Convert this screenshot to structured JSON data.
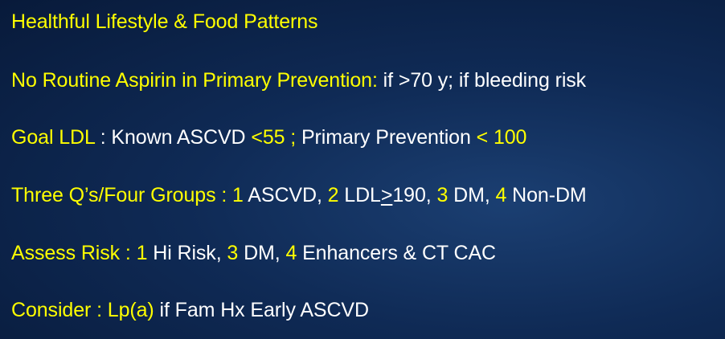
{
  "lines": [
    {
      "segments": [
        {
          "text": "Healthful Lifestyle & Food Patterns",
          "color": "yellow"
        }
      ]
    },
    {
      "segments": [
        {
          "text": "No Routine Aspirin in Primary Prevention:",
          "color": "yellow"
        },
        {
          "text": " if >70 y; if bleeding risk",
          "color": "white"
        }
      ]
    },
    {
      "segments": [
        {
          "text": "Goal LDL",
          "color": "yellow"
        },
        {
          "text": " : Known ASCVD ",
          "color": "white"
        },
        {
          "text": "<55 ;",
          "color": "yellow"
        },
        {
          "text": " Primary Prevention ",
          "color": "white"
        },
        {
          "text": "< 100",
          "color": "yellow"
        }
      ]
    },
    {
      "segments": [
        {
          "text": "Three Q’s/Four Groups : ",
          "color": "yellow"
        },
        {
          "text": "1",
          "color": "yellow"
        },
        {
          "text": " ASCVD, ",
          "color": "white"
        },
        {
          "text": "2",
          "color": "yellow"
        },
        {
          "text": " LDL",
          "color": "white"
        },
        {
          "text": ">",
          "color": "white"
        },
        {
          "text": "190, ",
          "color": "white"
        },
        {
          "text": "3",
          "color": "yellow"
        },
        {
          "text": " DM, ",
          "color": "white"
        },
        {
          "text": "4",
          "color": "yellow"
        },
        {
          "text": " Non-DM",
          "color": "white"
        }
      ]
    },
    {
      "segments": [
        {
          "text": "Assess Risk :  ",
          "color": "yellow"
        },
        {
          "text": "1",
          "color": "yellow"
        },
        {
          "text": " Hi Risk, ",
          "color": "white"
        },
        {
          "text": "3",
          "color": "yellow"
        },
        {
          "text": " DM, ",
          "color": "white"
        },
        {
          "text": "4",
          "color": "yellow"
        },
        {
          "text": " Enhancers & CT CAC",
          "color": "white"
        }
      ]
    },
    {
      "segments": [
        {
          "text": "Consider : Lp(a)",
          "color": "yellow"
        },
        {
          "text": " if Fam Hx Early ASCVD",
          "color": "white"
        }
      ]
    }
  ],
  "colors": {
    "yellow": "#ffff00",
    "white": "#ffffff",
    "background": "#0f2a55"
  }
}
